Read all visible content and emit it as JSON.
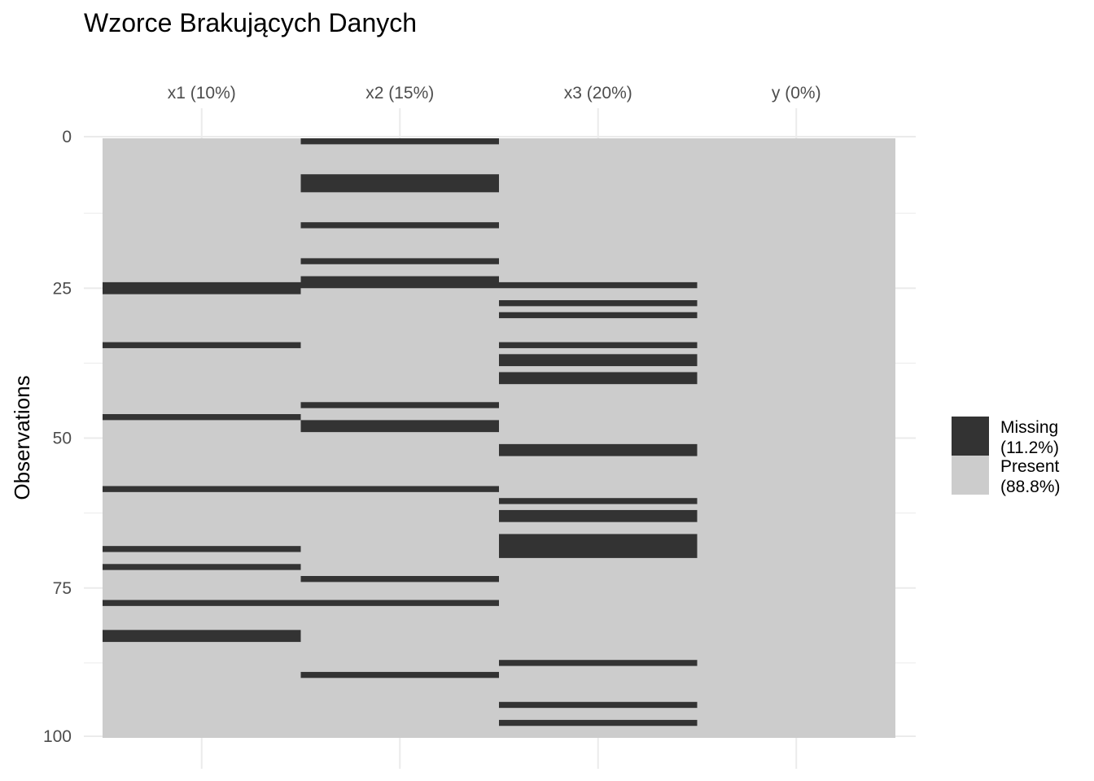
{
  "chart_data": {
    "type": "heatmap",
    "title": "Wzorce Brakujących Danych",
    "ylabel": "Observations",
    "xlabel": "",
    "ylim": [
      0,
      100
    ],
    "yticks": [
      0,
      25,
      50,
      75,
      100
    ],
    "grid": true,
    "legend_placement": "right",
    "colors": {
      "missing": "#333333",
      "present": "#cccccc",
      "grid": "#ebebeb"
    },
    "columns": [
      {
        "label": "x1 (10%)",
        "missing_rows": [
          25,
          26,
          35,
          47,
          59,
          69,
          72,
          78,
          83,
          84
        ]
      },
      {
        "label": "x2 (15%)",
        "missing_rows": [
          1,
          7,
          8,
          9,
          15,
          21,
          24,
          25,
          45,
          48,
          49,
          59,
          74,
          78,
          90
        ]
      },
      {
        "label": "x3 (20%)",
        "missing_rows": [
          25,
          28,
          30,
          35,
          37,
          38,
          40,
          41,
          52,
          53,
          61,
          63,
          64,
          67,
          68,
          69,
          70,
          88,
          95,
          98
        ]
      },
      {
        "label": "y (0%)",
        "missing_rows": []
      }
    ],
    "legend": [
      {
        "key": "missing",
        "line1": "Missing",
        "line2": "(11.2%)"
      },
      {
        "key": "present",
        "line1": "Present",
        "line2": "(88.8%)"
      }
    ]
  }
}
